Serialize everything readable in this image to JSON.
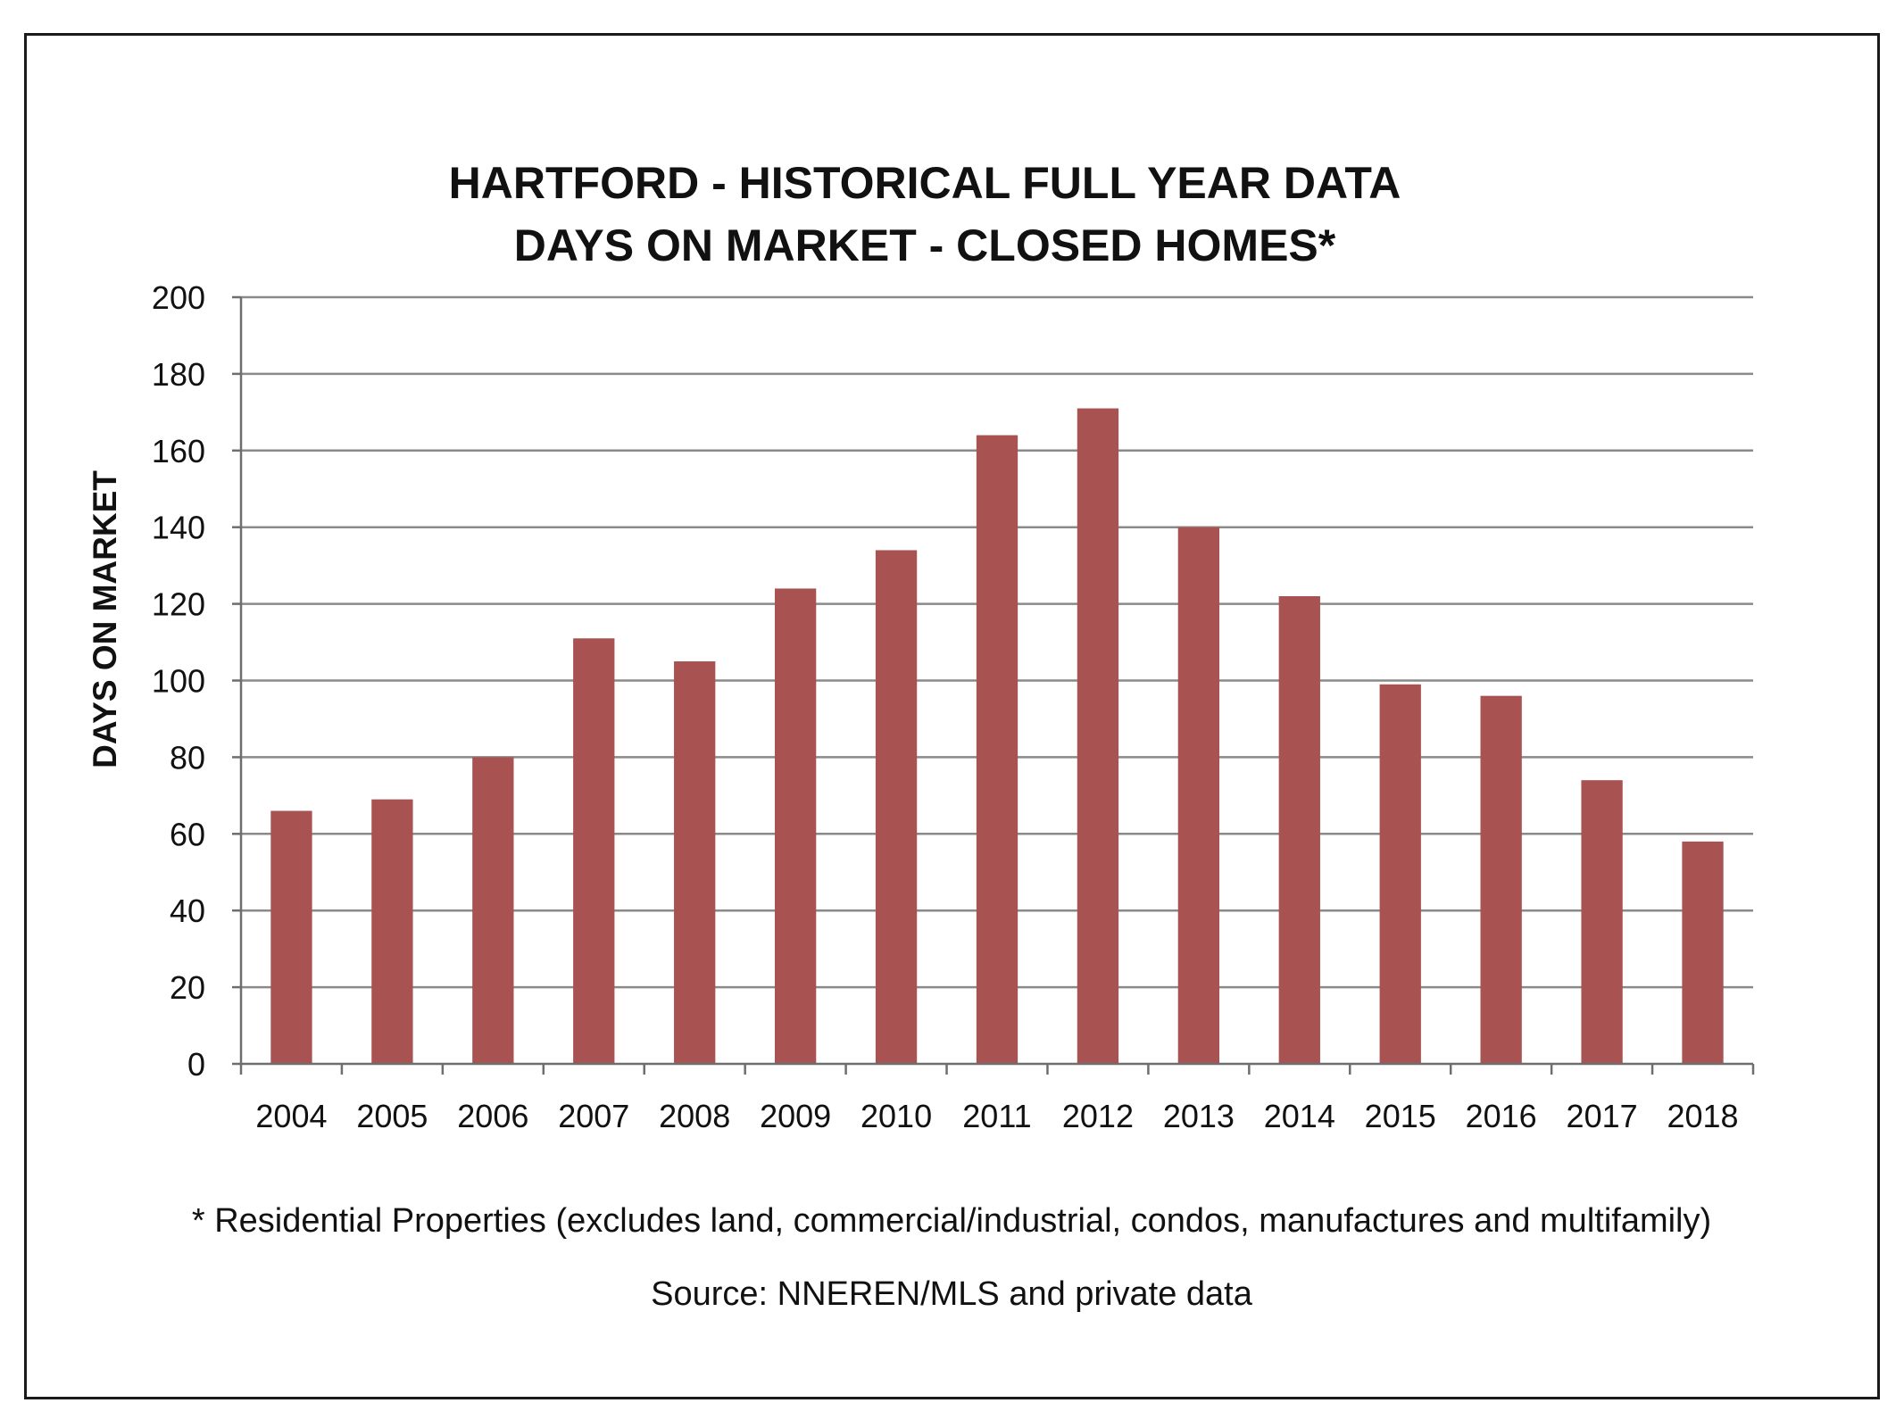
{
  "chart_data": {
    "type": "bar",
    "title": [
      "HARTFORD - HISTORICAL FULL YEAR DATA",
      "DAYS ON MARKET - CLOSED HOMES*"
    ],
    "xlabel": "",
    "ylabel": "DAYS ON MARKET",
    "categories": [
      "2004",
      "2005",
      "2006",
      "2007",
      "2008",
      "2009",
      "2010",
      "2011",
      "2012",
      "2013",
      "2014",
      "2015",
      "2016",
      "2017",
      "2018"
    ],
    "values": [
      66,
      69,
      80,
      111,
      105,
      124,
      134,
      164,
      171,
      140,
      122,
      99,
      96,
      74,
      58
    ],
    "ylim": [
      0,
      200
    ],
    "yticks": [
      0,
      20,
      40,
      60,
      80,
      100,
      120,
      140,
      160,
      180,
      200
    ],
    "grid": true,
    "legend": "none",
    "bar_color": "#a85252",
    "footnote": "* Residential Properties (excludes land, commercial/industrial, condos, manufactures and multifamily)",
    "source": "Source: NNEREN/MLS and private data"
  }
}
